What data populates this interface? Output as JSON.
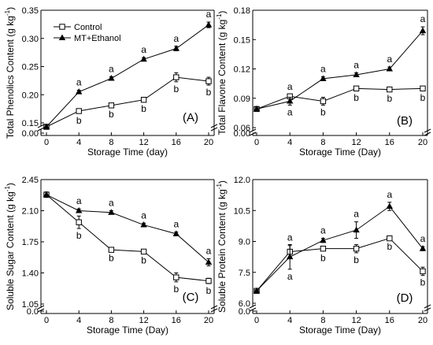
{
  "chart_data": [
    {
      "type": "line",
      "panel_label": "(A)",
      "ylabel": "Total Phenolics Content (g kg-1)",
      "ylabel_main": "Total Phenolics Content (g kg",
      "ylabel_sup": "-1",
      "ylabel_tail": ")",
      "xlabel": "Storage Time (day)",
      "x": [
        0,
        4,
        8,
        12,
        16,
        20
      ],
      "xlim": [
        0,
        20
      ],
      "xticks": [
        "0",
        "4",
        "8",
        "12",
        "16",
        "20"
      ],
      "ylim_break": [
        0.15,
        0.35
      ],
      "yticks": [
        "0.00",
        "0.15",
        "0.20",
        "0.25",
        "0.30",
        "0.35"
      ],
      "ytick_values": [
        0.0,
        0.15,
        0.2,
        0.25,
        0.3,
        0.35
      ],
      "legend": true,
      "legend_placement": "top-left",
      "series": [
        {
          "name": "Control",
          "marker": "square-open",
          "values": [
            0.143,
            0.171,
            0.181,
            0.191,
            0.231,
            0.224
          ],
          "errors": [
            0.003,
            0.004,
            0.003,
            0.003,
            0.008,
            0.007
          ],
          "letters": [
            "",
            "b",
            "b",
            "b",
            "b",
            "b"
          ]
        },
        {
          "name": "MT+Ethanol",
          "marker": "triangle-filled",
          "values": [
            0.143,
            0.205,
            0.229,
            0.263,
            0.282,
            0.324
          ],
          "errors": [
            0.003,
            0.003,
            0.003,
            0.003,
            0.004,
            0.005
          ],
          "letters": [
            "",
            "a",
            "a",
            "a",
            "a",
            "a"
          ]
        }
      ]
    },
    {
      "type": "line",
      "panel_label": "(B)",
      "ylabel": "Total Flavone Content (g kg-1)",
      "ylabel_main": "Total Flavone Content (g kg",
      "ylabel_sup": "-1",
      "ylabel_tail": ")",
      "xlabel": "Storage Time (Day)",
      "x": [
        0,
        4,
        8,
        12,
        16,
        20
      ],
      "xlim": [
        0,
        20
      ],
      "xticks": [
        "0",
        "4",
        "8",
        "12",
        "16",
        "20"
      ],
      "ylim_break": [
        0.06,
        0.18
      ],
      "yticks": [
        "0.00",
        "0.06",
        "0.09",
        "0.12",
        "0.15",
        "0.18"
      ],
      "ytick_values": [
        0.0,
        0.06,
        0.09,
        0.12,
        0.15,
        0.18
      ],
      "series": [
        {
          "name": "Control",
          "marker": "square-open",
          "values": [
            0.079,
            0.092,
            0.087,
            0.1,
            0.099,
            0.1
          ],
          "errors": [
            0.002,
            0.002,
            0.004,
            0.002,
            0.002,
            0.002
          ],
          "letters": [
            "",
            "a",
            "b",
            "b",
            "b",
            "b"
          ]
        },
        {
          "name": "MT+Ethanol",
          "marker": "triangle-filled",
          "values": [
            0.079,
            0.087,
            0.11,
            0.114,
            0.12,
            0.159
          ],
          "errors": [
            0.002,
            0.004,
            0.002,
            0.002,
            0.002,
            0.004
          ],
          "letters": [
            "",
            "a",
            "a",
            "a",
            "a",
            "a"
          ]
        }
      ]
    },
    {
      "type": "line",
      "panel_label": "(C)",
      "ylabel": "Soluble Sugar Content (g kg-1)",
      "ylabel_main": "Soluble Sugar Content (g kg",
      "ylabel_sup": "-1",
      "ylabel_tail": ")",
      "xlabel": "Storage Time (Day)",
      "x": [
        0,
        4,
        8,
        12,
        16,
        20
      ],
      "xlim": [
        0,
        20
      ],
      "xticks": [
        "0",
        "4",
        "8",
        "12",
        "16",
        "20"
      ],
      "ylim_break": [
        1.05,
        2.45
      ],
      "yticks": [
        "0.0",
        "1.05",
        "1.40",
        "1.75",
        "2.10",
        "2.45"
      ],
      "ytick_values": [
        0.0,
        1.05,
        1.4,
        1.75,
        2.1,
        2.45
      ],
      "series": [
        {
          "name": "Control",
          "marker": "square-open",
          "values": [
            2.28,
            1.97,
            1.66,
            1.64,
            1.35,
            1.31
          ],
          "errors": [
            0.03,
            0.07,
            0.01,
            0.02,
            0.05,
            0.03
          ],
          "letters": [
            "",
            "b",
            "b",
            "b",
            "b",
            "b"
          ]
        },
        {
          "name": "MT+Ethanol",
          "marker": "triangle-filled",
          "values": [
            2.28,
            2.1,
            2.08,
            1.94,
            1.84,
            1.52
          ],
          "errors": [
            0.03,
            0.02,
            0.02,
            0.02,
            0.02,
            0.04
          ],
          "letters": [
            "",
            "a",
            "a",
            "a",
            "a",
            "a"
          ]
        }
      ]
    },
    {
      "type": "line",
      "panel_label": "(D)",
      "ylabel": "Soluble Protein Content (g kg-1)",
      "ylabel_main": "Soluble Protein Content (g kg",
      "ylabel_sup": "-1",
      "ylabel_tail": ")",
      "xlabel": "Storage Time (Day)",
      "x": [
        0,
        4,
        8,
        12,
        16,
        20
      ],
      "xlim": [
        0,
        20
      ],
      "xticks": [
        "0",
        "4",
        "8",
        "12",
        "16",
        "20"
      ],
      "ylim_break": [
        6.0,
        12.0
      ],
      "yticks": [
        "0.0",
        "6.0",
        "7.5",
        "9.0",
        "10.5",
        "12.0"
      ],
      "ytick_values": [
        0.0,
        6.0,
        7.5,
        9.0,
        10.5,
        12.0
      ],
      "series": [
        {
          "name": "Control",
          "marker": "square-open",
          "values": [
            6.6,
            8.5,
            8.65,
            8.65,
            9.15,
            7.55
          ],
          "errors": [
            0.05,
            0.3,
            0.1,
            0.2,
            0.05,
            0.2
          ],
          "letters": [
            "",
            "a",
            "b",
            "b",
            "b",
            "b"
          ]
        },
        {
          "name": "MT+Ethanol",
          "marker": "triangle-filled",
          "values": [
            6.6,
            8.25,
            9.05,
            9.55,
            10.7,
            8.65
          ],
          "errors": [
            0.05,
            0.6,
            0.1,
            0.4,
            0.2,
            0.1
          ],
          "letters": [
            "",
            "a",
            "a",
            "a",
            "a",
            "a"
          ]
        }
      ]
    }
  ]
}
